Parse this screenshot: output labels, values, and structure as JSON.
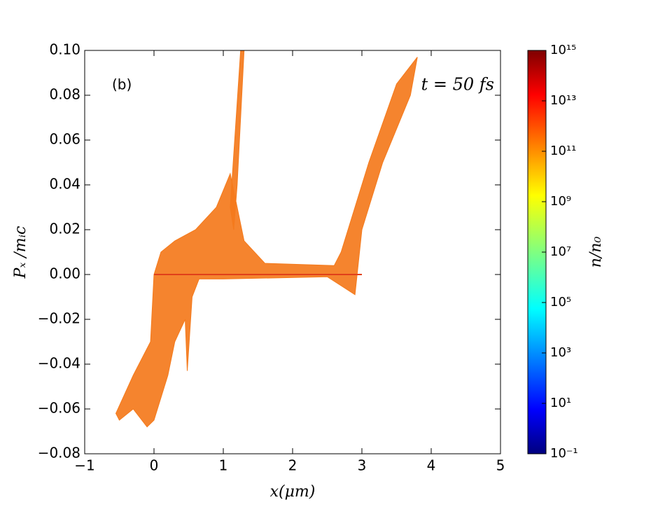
{
  "chart_data": {
    "type": "phase-space",
    "panel_label": "(b)",
    "annotation": "t = 50 fs",
    "x_label": "x(μm)",
    "y_label": "Pₓ /mᵢc",
    "colorbar_label": "n/n₀",
    "xlim": [
      -1,
      5
    ],
    "ylim": [
      -0.08,
      0.1
    ],
    "xticks": [
      {
        "value": -1,
        "label": "−1"
      },
      0,
      1,
      2,
      3,
      4,
      5
    ],
    "yticks": [
      {
        "value": -0.08,
        "label": "−0.08"
      },
      {
        "value": -0.06,
        "label": "−0.06"
      },
      {
        "value": -0.04,
        "label": "−0.04"
      },
      {
        "value": -0.02,
        "label": "−0.02"
      },
      {
        "value": 0,
        "label": "0.00"
      },
      0.02,
      0.04,
      0.06,
      0.08,
      {
        "value": 0.1,
        "label": "0.10"
      }
    ],
    "clim": [
      0.1,
      1000000000000000.0
    ],
    "clog": true,
    "cticks": [
      {
        "value": 0.1,
        "label": "10⁻¹"
      },
      {
        "value": 10,
        "label": "10¹"
      },
      {
        "value": 1000,
        "label": "10³"
      },
      {
        "value": 100000,
        "label": "10⁵"
      },
      {
        "value": 10000000,
        "label": "10⁷"
      },
      {
        "value": 1000000000,
        "label": "10⁹"
      },
      {
        "value": 100000000000,
        "label": "10¹¹"
      },
      {
        "value": 10000000000000,
        "label": "10¹³"
      },
      {
        "value": 1000000000000000,
        "label": "10¹⁵"
      }
    ],
    "regions": [
      {
        "color": "#f47a1c",
        "x": [
          0,
          0.1,
          0.3,
          0.6,
          0.9,
          1.1,
          1.2,
          1.3,
          1.6,
          2.6,
          2.7,
          2.9,
          3.1,
          3.5,
          3.8,
          3.7,
          3.3,
          3.0,
          2.9,
          2.7,
          2.5,
          1.0,
          0.65,
          0.55,
          0.48,
          0.45,
          0.3,
          0.2,
          0.0,
          -0.1,
          -0.3,
          -0.5,
          -0.55,
          -0.3,
          -0.05
        ],
        "values": [
          0,
          0.01,
          0.015,
          0.02,
          0.03,
          0.045,
          0.03,
          0.015,
          0.005,
          0.004,
          0.01,
          0.03,
          0.05,
          0.085,
          0.097,
          0.08,
          0.05,
          0.02,
          -0.009,
          -0.005,
          -0.001,
          -0.002,
          -0.002,
          -0.01,
          -0.043,
          -0.02,
          -0.03,
          -0.045,
          -0.065,
          -0.068,
          -0.06,
          -0.065,
          -0.062,
          -0.045,
          -0.03
        ]
      },
      {
        "color": "#f47a1c",
        "x": [
          1.1,
          1.25,
          1.3,
          1.2,
          1.15
        ],
        "values": [
          0.03,
          0.1,
          0.1,
          0.04,
          0.02
        ]
      }
    ],
    "lines": [
      {
        "color": "#e0401a",
        "x": [
          0,
          3
        ],
        "values": [
          0,
          0
        ]
      }
    ]
  }
}
